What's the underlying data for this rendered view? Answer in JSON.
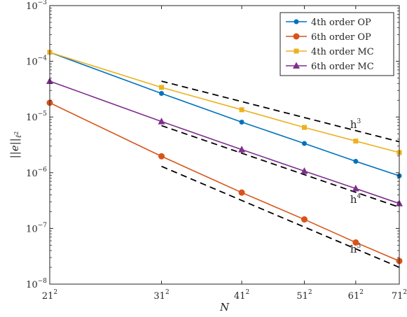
{
  "chart_data": {
    "type": "line",
    "xscale": "log",
    "yscale": "log",
    "xlabel": "N",
    "ylabel": "||e||",
    "ylabel_sub": "ℓ",
    "ylabel_sub_sup": "2",
    "xlim": [
      441,
      5041
    ],
    "ylim": [
      1e-08,
      0.001
    ],
    "grid": false,
    "legend_position": "top-right",
    "x_ticks": [
      {
        "value": 441,
        "base": "21",
        "exp": "2"
      },
      {
        "value": 961,
        "base": "31",
        "exp": "2"
      },
      {
        "value": 1681,
        "base": "41",
        "exp": "2"
      },
      {
        "value": 2601,
        "base": "51",
        "exp": "2"
      },
      {
        "value": 3721,
        "base": "61",
        "exp": "2"
      },
      {
        "value": 5041,
        "base": "71",
        "exp": "2"
      }
    ],
    "y_ticks": [
      {
        "value": 1e-08,
        "base": "10",
        "exp": "−8"
      },
      {
        "value": 1e-07,
        "base": "10",
        "exp": "−7"
      },
      {
        "value": 1e-06,
        "base": "10",
        "exp": "−6"
      },
      {
        "value": 1e-05,
        "base": "10",
        "exp": "−5"
      },
      {
        "value": 0.0001,
        "base": "10",
        "exp": "−4"
      },
      {
        "value": 0.001,
        "base": "10",
        "exp": "−3"
      }
    ],
    "x": [
      441,
      961,
      1681,
      2601,
      3721,
      5041
    ],
    "series": [
      {
        "name": "4th order OP",
        "color": "#0072BD",
        "marker": "circle-small",
        "values": [
          0.000145,
          2.65e-05,
          8.1e-06,
          3.35e-06,
          1.6e-06,
          8.8e-07
        ]
      },
      {
        "name": "6th order OP",
        "color": "#D95319",
        "marker": "circle",
        "values": [
          1.8e-05,
          1.97e-06,
          4.4e-07,
          1.45e-07,
          5.6e-08,
          2.6e-08
        ]
      },
      {
        "name": "4th order MC",
        "color": "#EDB120",
        "marker": "square",
        "values": [
          0.000145,
          3.4e-05,
          1.35e-05,
          6.5e-06,
          3.7e-06,
          2.3e-06
        ]
      },
      {
        "name": "6th order MC",
        "color": "#7E2F8E",
        "marker": "triangle",
        "values": [
          4.4e-05,
          8.3e-06,
          2.6e-06,
          1.07e-06,
          5.2e-07,
          2.8e-07
        ]
      }
    ],
    "reference_lines": [
      {
        "label_base": "h",
        "label_exp": "3",
        "x": [
          961,
          5041
        ],
        "y": [
          4.4e-05,
          3.6e-06
        ],
        "label_at": [
          3721,
          7.5e-06
        ]
      },
      {
        "label_base": "h",
        "label_exp": "4",
        "x": [
          961,
          5041
        ],
        "y": [
          7e-06,
          2.4e-07
        ],
        "label_at": [
          3721,
          3.4e-07
        ]
      },
      {
        "label_base": "h",
        "label_exp": "5",
        "x": [
          961,
          5041
        ],
        "y": [
          1.3e-06,
          2e-08
        ],
        "label_at": [
          3721,
          4.4e-08
        ]
      }
    ]
  }
}
